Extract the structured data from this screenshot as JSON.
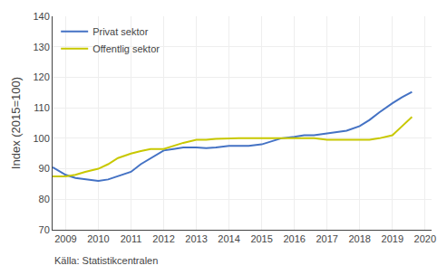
{
  "chart_data": {
    "type": "line",
    "ylabel": "Index (2015=100)",
    "annotations": [
      "Källa: Statistikcentralen"
    ],
    "x": [
      2008.6,
      2009.0,
      2009.3,
      2009.6,
      2010.0,
      2010.3,
      2010.6,
      2011.0,
      2011.3,
      2011.6,
      2012.0,
      2012.3,
      2012.6,
      2013.0,
      2013.3,
      2013.6,
      2014.0,
      2014.3,
      2014.6,
      2015.0,
      2015.3,
      2015.6,
      2016.0,
      2016.3,
      2016.6,
      2017.0,
      2017.3,
      2017.6,
      2018.0,
      2018.3,
      2018.6,
      2019.0,
      2019.3,
      2019.6
    ],
    "series": [
      {
        "name": "Privat sektor",
        "color": "#4472c4",
        "values": [
          90.5,
          88.0,
          87.0,
          86.5,
          86.0,
          86.5,
          87.5,
          89.0,
          91.5,
          93.5,
          96.0,
          96.5,
          97.0,
          97.0,
          96.8,
          97.0,
          97.5,
          97.5,
          97.5,
          98.0,
          99.0,
          100.0,
          100.5,
          101.0,
          101.0,
          101.5,
          102.0,
          102.5,
          104.0,
          106.0,
          108.5,
          111.5,
          113.5,
          115.2
        ]
      },
      {
        "name": "Offentlig sektor",
        "color": "#c8c800",
        "values": [
          87.5,
          87.5,
          88.0,
          89.0,
          90.0,
          91.5,
          93.5,
          95.0,
          95.8,
          96.5,
          96.5,
          97.5,
          98.5,
          99.5,
          99.5,
          99.8,
          100.0,
          100.0,
          100.0,
          100.0,
          100.0,
          100.0,
          100.0,
          100.0,
          100.0,
          99.5,
          99.5,
          99.5,
          99.5,
          99.5,
          100.0,
          101.0,
          104.0,
          107.0
        ]
      }
    ],
    "xlim": [
      2008.6,
      2020.2
    ],
    "xticks": [
      2009,
      2010,
      2011,
      2012,
      2013,
      2014,
      2015,
      2016,
      2017,
      2018,
      2019,
      2020
    ],
    "ylim": [
      70,
      140
    ],
    "yticks": [
      70,
      80,
      90,
      100,
      110,
      120,
      130,
      140
    ],
    "grid": true,
    "legend": "upper left"
  }
}
